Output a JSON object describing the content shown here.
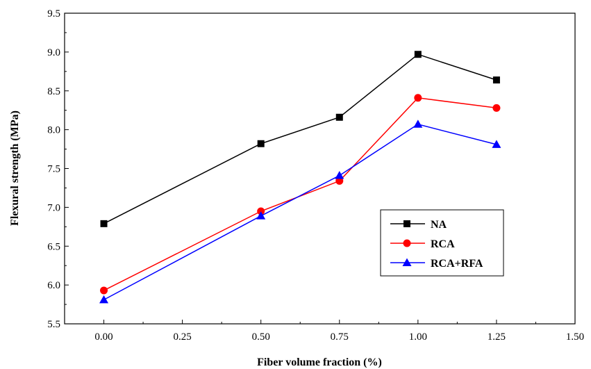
{
  "chart_data": {
    "type": "line",
    "title": "",
    "xlabel": "Fiber volume fraction (%)",
    "ylabel": "Flexural strength (MPa)",
    "xlim": [
      -0.125,
      1.5
    ],
    "ylim": [
      5.5,
      9.5
    ],
    "xticks": [
      "0.00",
      "0.25",
      "0.50",
      "0.75",
      "1.00",
      "1.25",
      "1.50"
    ],
    "yticks": [
      "5.5",
      "6.0",
      "6.5",
      "7.0",
      "7.5",
      "8.0",
      "8.5",
      "9.0",
      "9.5"
    ],
    "grid": false,
    "legend_position": "lower-right",
    "x": [
      0.0,
      0.5,
      0.75,
      1.0,
      1.25
    ],
    "series": [
      {
        "name": "NA",
        "color": "#000000",
        "marker": "square",
        "values": [
          6.79,
          7.82,
          8.16,
          8.97,
          8.64
        ]
      },
      {
        "name": "RCA",
        "color": "#ff0000",
        "marker": "circle",
        "values": [
          5.93,
          6.95,
          7.34,
          8.41,
          8.28
        ]
      },
      {
        "name": "RCA+RFA",
        "color": "#0000ff",
        "marker": "triangle",
        "values": [
          5.81,
          6.89,
          7.41,
          8.07,
          7.81
        ]
      }
    ]
  }
}
